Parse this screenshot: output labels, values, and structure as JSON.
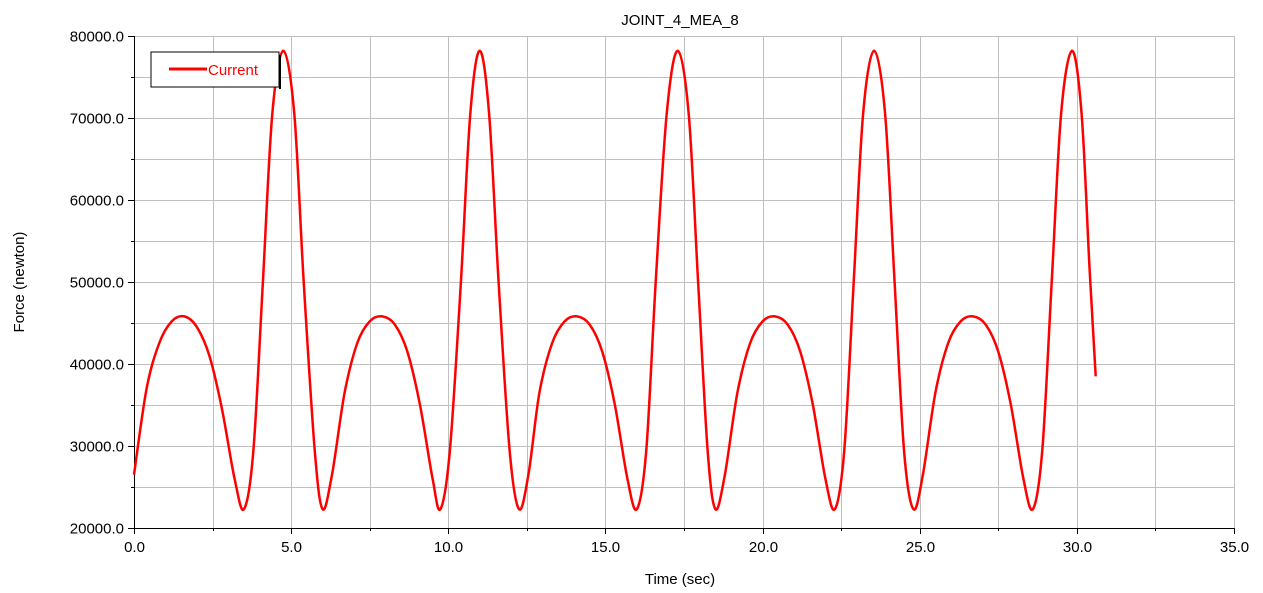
{
  "chart_data": {
    "type": "line",
    "title": "JOINT_4_MEA_8",
    "xlabel": "Time (sec)",
    "ylabel": "Force (newton)",
    "xlim": [
      0,
      35
    ],
    "ylim": [
      20000,
      80000
    ],
    "x_ticks": [
      "0.0",
      "5.0",
      "10.0",
      "15.0",
      "20.0",
      "25.0",
      "30.0",
      "35.0"
    ],
    "y_ticks": [
      "20000.0",
      "30000.0",
      "40000.0",
      "50000.0",
      "60000.0",
      "70000.0",
      "80000.0"
    ],
    "grid": true,
    "legend_position": "top-left",
    "series": [
      {
        "name": "Current",
        "color": "#ff0000",
        "x": [
          0.0,
          0.4,
          0.8,
          1.2,
          1.6,
          2.0,
          2.4,
          2.8,
          3.2,
          3.5,
          3.8,
          4.1,
          4.4,
          4.75,
          5.1,
          5.4,
          5.75,
          6.0,
          6.3,
          6.7,
          7.1,
          7.5,
          7.9,
          8.3,
          8.7,
          9.1,
          9.5,
          9.75,
          10.05,
          10.4,
          10.7,
          11.0,
          11.3,
          11.6,
          11.95,
          12.25,
          12.55,
          12.9,
          13.3,
          13.7,
          14.1,
          14.5,
          14.9,
          15.3,
          15.7,
          16.0,
          16.3,
          16.6,
          16.95,
          17.3,
          17.65,
          17.95,
          18.25,
          18.5,
          18.8,
          19.2,
          19.6,
          20.0,
          20.4,
          20.8,
          21.2,
          21.6,
          22.0,
          22.3,
          22.6,
          22.9,
          23.2,
          23.55,
          23.9,
          24.2,
          24.5,
          24.8,
          25.1,
          25.5,
          25.9,
          26.3,
          26.7,
          27.1,
          27.5,
          27.9,
          28.3,
          28.6,
          28.9,
          29.2,
          29.5,
          29.85,
          30.15,
          30.4,
          30.6
        ],
        "y": [
          26500,
          37000,
          42500,
          45200,
          45800,
          44500,
          41000,
          34500,
          26000,
          22300,
          29500,
          50000,
          70500,
          78200,
          70500,
          50000,
          29500,
          22300,
          26500,
          36500,
          42500,
          45200,
          45800,
          44800,
          41500,
          35000,
          26000,
          22300,
          29500,
          50000,
          70500,
          78200,
          70500,
          50000,
          29500,
          22300,
          26500,
          36500,
          42500,
          45200,
          45800,
          44800,
          41500,
          35000,
          26000,
          22300,
          29500,
          50000,
          70500,
          78200,
          70500,
          50000,
          29500,
          22300,
          26500,
          36500,
          42500,
          45200,
          45800,
          44800,
          41500,
          35000,
          26000,
          22300,
          29500,
          50000,
          70500,
          78200,
          70500,
          50000,
          29500,
          22300,
          26500,
          36500,
          42500,
          45200,
          45800,
          44800,
          41500,
          35000,
          26000,
          22300,
          29500,
          50000,
          70500,
          78200,
          70500,
          52000,
          38500
        ]
      }
    ]
  }
}
